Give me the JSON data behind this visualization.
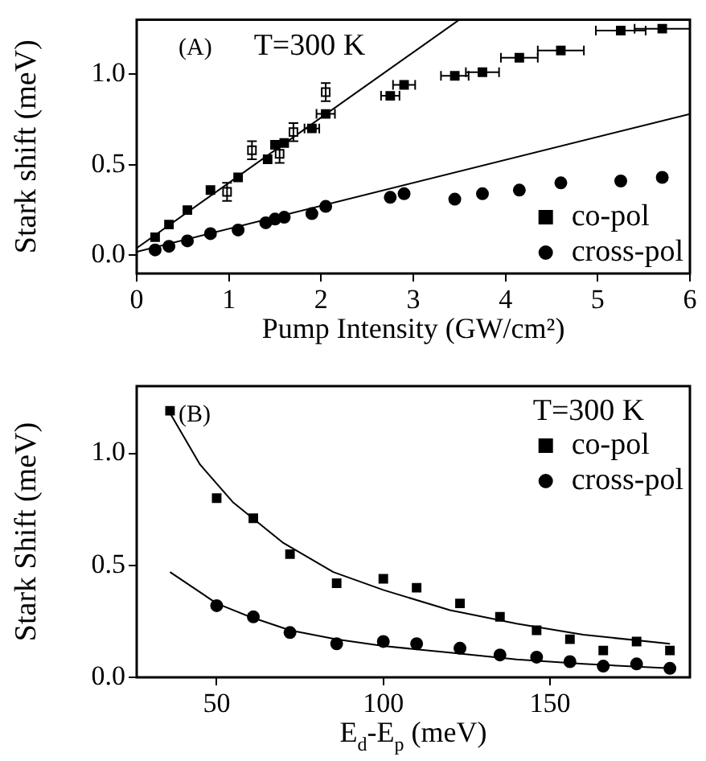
{
  "chart_data": [
    {
      "type": "scatter",
      "xlabel": "Pump Intensity (GW/cm²)",
      "ylabel": "Stark shift (meV)",
      "annotations": [
        "(A)",
        "T=300 K"
      ],
      "xlim": [
        0,
        6
      ],
      "xticks": [
        0,
        1,
        2,
        3,
        4,
        5,
        6
      ],
      "ylim": [
        -0.1,
        1.3
      ],
      "yticks": [
        {
          "value": 0,
          "label": "0.0"
        },
        {
          "value": 0.5,
          "label": "0.5"
        },
        {
          "value": 1,
          "label": "1.0"
        }
      ],
      "grid": false,
      "legend": "bottom right",
      "series": [
        {
          "name": "co-pol",
          "marker": "square",
          "color": "#000000",
          "x": [
            0.2,
            0.35,
            0.55,
            0.8,
            1.1,
            1.42,
            1.5,
            1.6,
            1.9,
            2.05,
            2.75,
            2.9,
            3.45,
            3.75,
            4.15,
            4.6,
            5.25,
            5.7
          ],
          "values": [
            0.1,
            0.17,
            0.25,
            0.36,
            0.43,
            0.53,
            0.61,
            0.62,
            0.7,
            0.78,
            0.88,
            0.94,
            0.99,
            1.01,
            1.09,
            1.13,
            1.24,
            1.25
          ],
          "xerrors": [
            null,
            null,
            null,
            null,
            null,
            null,
            null,
            null,
            0.08,
            0.1,
            0.1,
            0.12,
            0.15,
            0.18,
            0.2,
            0.25,
            0.27,
            0.3
          ]
        },
        {
          "marker": "square",
          "color": "#ffffff",
          "x": [
            0.98,
            1.25,
            1.55,
            1.7,
            2.05
          ],
          "values": [
            0.35,
            0.58,
            0.56,
            0.68,
            0.9
          ],
          "errors": [
            0.05,
            0.05,
            0.05,
            0.05,
            0.05
          ]
        },
        {
          "name": "cross-pol",
          "marker": "circle",
          "color": "#000000",
          "x": [
            0.2,
            0.35,
            0.55,
            0.8,
            1.1,
            1.4,
            1.5,
            1.6,
            1.9,
            2.05,
            2.75,
            2.9,
            3.45,
            3.75,
            4.15,
            4.6,
            5.25,
            5.7
          ],
          "values": [
            0.03,
            0.05,
            0.08,
            0.12,
            0.14,
            0.18,
            0.2,
            0.21,
            0.23,
            0.27,
            0.32,
            0.34,
            0.31,
            0.34,
            0.36,
            0.4,
            0.41,
            0.43
          ]
        },
        {
          "type": "line",
          "marker": "none",
          "color": "#000000",
          "x": [
            0,
            3.5
          ],
          "values": [
            0.04,
            1.3
          ]
        },
        {
          "type": "line",
          "marker": "none",
          "color": "#000000",
          "x": [
            0,
            6
          ],
          "values": [
            0.02,
            0.78
          ]
        }
      ]
    },
    {
      "type": "scatter",
      "xlabel": "E$_{d}$-E$_{p}$ (meV)",
      "ylabel": "Stark Shift (meV)",
      "annotations": [
        "(B)"
      ],
      "legend_title": "T=300 K",
      "xlim": [
        26,
        192
      ],
      "xticks": [
        50,
        100,
        150
      ],
      "ylim": [
        0,
        1.3
      ],
      "yticks": [
        {
          "value": 0,
          "label": "0.0"
        },
        {
          "value": 0.5,
          "label": "0.5"
        },
        {
          "value": 1,
          "label": "1.0"
        }
      ],
      "grid": false,
      "legend": "top right",
      "series": [
        {
          "name": "co-pol",
          "marker": "square",
          "color": "#000000",
          "x": [
            36,
            50,
            61,
            72,
            86,
            100,
            110,
            123,
            135,
            146,
            156,
            166,
            176,
            186
          ],
          "values": [
            1.19,
            0.8,
            0.71,
            0.55,
            0.42,
            0.44,
            0.4,
            0.33,
            0.27,
            0.21,
            0.17,
            0.12,
            0.16,
            0.12
          ]
        },
        {
          "name": "cross-pol",
          "marker": "circle",
          "color": "#000000",
          "x": [
            50,
            61,
            72,
            86,
            100,
            110,
            123,
            135,
            146,
            156,
            166,
            176,
            186
          ],
          "values": [
            0.32,
            0.27,
            0.2,
            0.15,
            0.16,
            0.15,
            0.13,
            0.1,
            0.09,
            0.07,
            0.05,
            0.06,
            0.04
          ]
        },
        {
          "type": "line",
          "marker": "none",
          "color": "#000000",
          "x": [
            36,
            45,
            55,
            70,
            85,
            100,
            120,
            140,
            160,
            186
          ],
          "values": [
            1.18,
            0.95,
            0.78,
            0.6,
            0.47,
            0.39,
            0.3,
            0.24,
            0.19,
            0.15
          ]
        },
        {
          "type": "line",
          "marker": "none",
          "color": "#000000",
          "x": [
            36,
            50,
            60,
            72,
            86,
            100,
            120,
            140,
            160,
            186
          ],
          "values": [
            0.47,
            0.33,
            0.27,
            0.21,
            0.17,
            0.14,
            0.11,
            0.08,
            0.06,
            0.04
          ]
        }
      ]
    }
  ]
}
